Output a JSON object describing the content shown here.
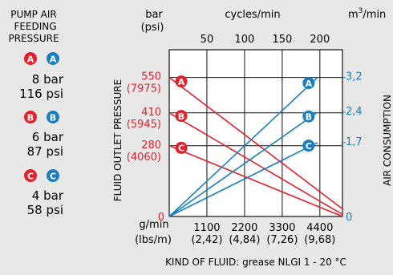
{
  "colors": {
    "red": "#e3202b",
    "blue": "#1a7fc1",
    "grid": "#111111",
    "background": "#e8e8e8",
    "plot_bg": "#ffffff"
  },
  "left_panel": {
    "heading": [
      "PUMP AIR",
      "FEEDING",
      "PRESSURE"
    ],
    "groups": [
      {
        "letter": "A",
        "bar": "8 bar",
        "psi": "116 psi"
      },
      {
        "letter": "B",
        "bar": "6 bar",
        "psi": "87 psi"
      },
      {
        "letter": "C",
        "bar": "4 bar",
        "psi": "58 psi"
      }
    ]
  },
  "chart_data": {
    "type": "line",
    "top_axis": {
      "label_unit_left": "bar",
      "label_unit_left_sub": "(psi)",
      "label_center": "cycles/min",
      "label_right_base": "m",
      "label_right_sup": "3",
      "label_right_tail": "/min",
      "ticks": [
        "50",
        "100",
        "150",
        "200"
      ],
      "tick_values": [
        50,
        100,
        150,
        200
      ],
      "range": [
        0,
        230
      ]
    },
    "x_axis": {
      "unit": "g/min",
      "unit_alt": "(lbs/m)",
      "ticks": [
        "1100",
        "2200",
        "3300",
        "4400"
      ],
      "ticks_alt": [
        "(2,42)",
        "(4,84)",
        "(7,26)",
        "(9,68)"
      ],
      "tick_values": [
        1100,
        2200,
        3300,
        4400
      ],
      "range": [
        0,
        5060
      ],
      "origin_label": "0",
      "title": "KIND OF FLUID: grease NLGI 1 - 20 °C"
    },
    "y_left": {
      "title": "FLUID OUTLET PRESSURE",
      "range": [
        0,
        660
      ],
      "ticks": [
        {
          "value": 550,
          "label": "550",
          "alt": "(7975)"
        },
        {
          "value": 410,
          "label": "410",
          "alt": "(5945)"
        },
        {
          "value": 280,
          "label": "280",
          "alt": "(4060)"
        }
      ],
      "origin_label": "0"
    },
    "y_right": {
      "title": "AIR CONSUMPTION",
      "range": [
        0,
        3.84
      ],
      "ticks": [
        {
          "value": 3.2,
          "label": "3,2"
        },
        {
          "value": 2.4,
          "label": "2,4"
        },
        {
          "value": 1.7,
          "label": "1,7"
        }
      ],
      "origin_label": "0"
    },
    "grid": true,
    "series": [
      {
        "name": "A",
        "kind": "fluid pressure",
        "axis": "left",
        "x": [
          0,
          5060
        ],
        "y": [
          550,
          30
        ]
      },
      {
        "name": "B",
        "kind": "fluid pressure",
        "axis": "left",
        "x": [
          0,
          5060
        ],
        "y": [
          410,
          8
        ]
      },
      {
        "name": "C",
        "kind": "fluid pressure",
        "axis": "left",
        "x": [
          0,
          5060
        ],
        "y": [
          280,
          0
        ]
      },
      {
        "name": "A",
        "kind": "air consumption",
        "axis": "right",
        "x": [
          0,
          4330
        ],
        "y": [
          0,
          3.2
        ]
      },
      {
        "name": "B",
        "kind": "air consumption",
        "axis": "right",
        "x": [
          0,
          4330
        ],
        "y": [
          0,
          2.4
        ]
      },
      {
        "name": "C",
        "kind": "air consumption",
        "axis": "right",
        "x": [
          0,
          4330
        ],
        "y": [
          0,
          1.7
        ]
      }
    ]
  }
}
